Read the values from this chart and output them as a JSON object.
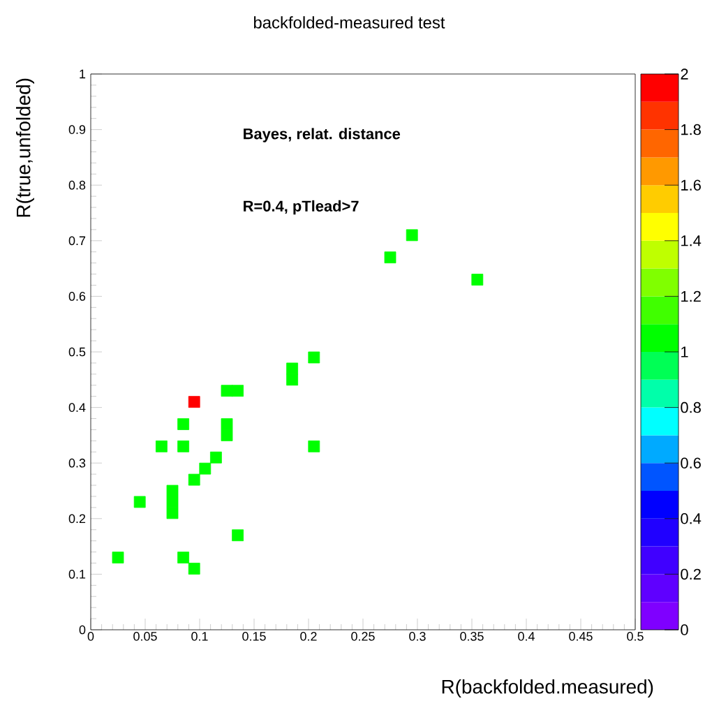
{
  "chart_data": {
    "type": "scatter",
    "title": "backfolded-measured test",
    "xlabel": "R(backfolded.measured)",
    "ylabel": "R(true,unfolded)",
    "annotations": [
      "Bayes, relat. distance",
      "R=0.4, pTlead>7"
    ],
    "x": [
      0.025,
      0.045,
      0.065,
      0.075,
      0.075,
      0.075,
      0.085,
      0.085,
      0.085,
      0.095,
      0.095,
      0.095,
      0.105,
      0.115,
      0.125,
      0.125,
      0.125,
      0.135,
      0.135,
      0.185,
      0.185,
      0.205,
      0.205,
      0.275,
      0.295,
      0.355
    ],
    "values": [
      0.13,
      0.23,
      0.33,
      0.21,
      0.23,
      0.25,
      0.33,
      0.37,
      0.13,
      0.11,
      0.41,
      0.27,
      0.29,
      0.31,
      0.35,
      0.37,
      0.43,
      0.43,
      0.17,
      0.45,
      0.47,
      0.49,
      0.33,
      0.67,
      0.71,
      0.63
    ],
    "cvalues": [
      1,
      1,
      1,
      1,
      1,
      1,
      1,
      1,
      1,
      1,
      2,
      1,
      1,
      1,
      1,
      1,
      1,
      1,
      1,
      1,
      1,
      1,
      1,
      1,
      1,
      1
    ],
    "marker": "square",
    "xlim": [
      0,
      0.5
    ],
    "xticks": [
      0,
      0.05,
      0.1,
      0.15,
      0.2,
      0.25,
      0.3,
      0.35,
      0.4,
      0.45,
      0.5
    ],
    "ylim": [
      0,
      1
    ],
    "yticks": [
      0,
      0.1,
      0.2,
      0.3,
      0.4,
      0.5,
      0.6,
      0.7,
      0.8,
      0.9,
      1
    ],
    "clim": [
      0,
      2
    ],
    "cticks": [
      0,
      0.2,
      0.4,
      0.6,
      0.8,
      1,
      1.2,
      1.4,
      1.6,
      1.8,
      2
    ]
  }
}
